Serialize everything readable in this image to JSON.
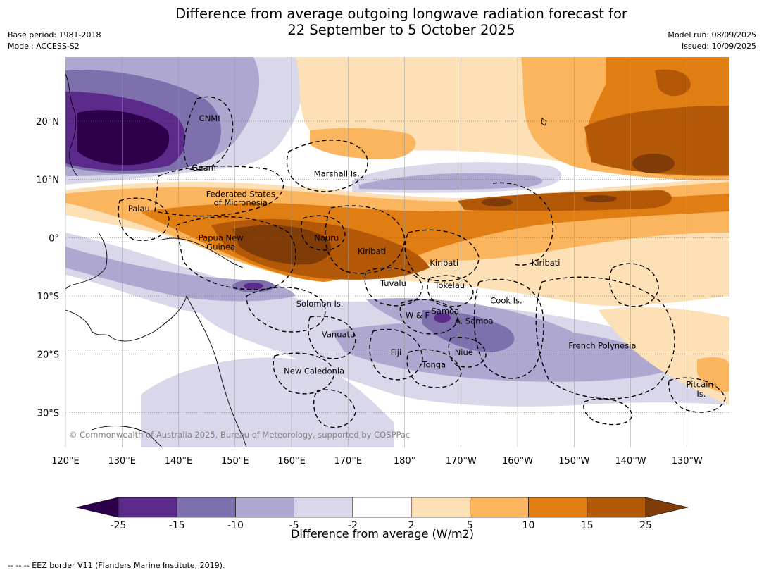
{
  "title": {
    "line1": "Difference from average outgoing longwave radiation forecast for",
    "line2": "22 September to 5 October 2025"
  },
  "meta": {
    "base_period": "Base period: 1981-2018",
    "model": "Model: ACCESS-S2",
    "model_run": "Model run: 08/09/2025",
    "issued": "Issued: 10/09/2025"
  },
  "map": {
    "lon_range": [
      120,
      237.5
    ],
    "lat_range": [
      -36,
      31
    ],
    "lon_ticks": [
      {
        "lon": 120,
        "label": "120°E"
      },
      {
        "lon": 130,
        "label": "130°E"
      },
      {
        "lon": 140,
        "label": "140°E"
      },
      {
        "lon": 150,
        "label": "150°E"
      },
      {
        "lon": 160,
        "label": "160°E"
      },
      {
        "lon": 170,
        "label": "170°E"
      },
      {
        "lon": 180,
        "label": "180°"
      },
      {
        "lon": 190,
        "label": "170°W"
      },
      {
        "lon": 200,
        "label": "160°W"
      },
      {
        "lon": 210,
        "label": "150°W"
      },
      {
        "lon": 220,
        "label": "140°W"
      },
      {
        "lon": 230,
        "label": "130°W"
      }
    ],
    "lat_ticks": [
      {
        "lat": 20,
        "label": "20°N"
      },
      {
        "lat": 10,
        "label": "10°N"
      },
      {
        "lat": 0,
        "label": "0°"
      },
      {
        "lat": -10,
        "label": "10°S"
      },
      {
        "lat": -20,
        "label": "20°S"
      },
      {
        "lat": -30,
        "label": "30°S"
      }
    ],
    "copyright": "© Commonwealth of Australia 2025, Bureau of Meteorology, supported by COSPPac",
    "region_labels": [
      {
        "text": "CNMI",
        "lon": 145.5,
        "lat": 20.5
      },
      {
        "text": "Guam",
        "lon": 144.5,
        "lat": 12.0
      },
      {
        "text": "Marshall Is.",
        "lon": 168.0,
        "lat": 11.0
      },
      {
        "text": "Federated States",
        "lon": 151.0,
        "lat": 7.5
      },
      {
        "text": "of Micronesia",
        "lon": 151.0,
        "lat": 6.0
      },
      {
        "text": "Palau",
        "lon": 133.0,
        "lat": 5.0
      },
      {
        "text": "Papua New",
        "lon": 147.5,
        "lat": 0.0
      },
      {
        "text": "Guinea",
        "lon": 147.5,
        "lat": -1.6
      },
      {
        "text": "Nauru",
        "lon": 166.2,
        "lat": 0.0
      },
      {
        "text": "Kiribati",
        "lon": 174.2,
        "lat": -2.3
      },
      {
        "text": "Kiribati",
        "lon": 187.0,
        "lat": -4.3
      },
      {
        "text": "Kiribati",
        "lon": 205.0,
        "lat": -4.3
      },
      {
        "text": "Tuvalu",
        "lon": 178.0,
        "lat": -7.8
      },
      {
        "text": "Tokelau",
        "lon": 188.0,
        "lat": -8.2
      },
      {
        "text": "Cook Is.",
        "lon": 198.0,
        "lat": -10.8
      },
      {
        "text": "Solomon Is.",
        "lon": 165.0,
        "lat": -11.3
      },
      {
        "text": "Samoa",
        "lon": 187.2,
        "lat": -12.6
      },
      {
        "text": "W & F",
        "lon": 182.3,
        "lat": -13.3
      },
      {
        "text": "A. Samoa",
        "lon": 192.3,
        "lat": -14.3
      },
      {
        "text": "Vanuatu",
        "lon": 168.3,
        "lat": -16.6
      },
      {
        "text": "Fiji",
        "lon": 178.5,
        "lat": -19.7
      },
      {
        "text": "Niue",
        "lon": 190.5,
        "lat": -19.7
      },
      {
        "text": "Tonga",
        "lon": 185.2,
        "lat": -21.8
      },
      {
        "text": "French Polynesia",
        "lon": 215.0,
        "lat": -18.5
      },
      {
        "text": "New Caledonia",
        "lon": 164.0,
        "lat": -22.9
      },
      {
        "text": "Pitcairn",
        "lon": 232.5,
        "lat": -25.2
      },
      {
        "text": "Is.",
        "lon": 232.5,
        "lat": -26.8
      }
    ]
  },
  "colorbar": {
    "tick_labels": [
      "-25",
      "-15",
      "-10",
      "-5",
      "-2",
      "2",
      "5",
      "10",
      "15",
      "25"
    ],
    "colors": [
      "#5b2a8b",
      "#7e70ad",
      "#aea8d1",
      "#d8d8ea",
      "#ffffff",
      "#fde0b5",
      "#fbb55f",
      "#e07d13",
      "#b35806"
    ],
    "under_color": "#2d004b",
    "over_color": "#7f3b08",
    "label": "Difference from average (W/m2)"
  },
  "footnote": "--  --  -- EEZ border V11 (Flanders Marine Institute, 2019)."
}
